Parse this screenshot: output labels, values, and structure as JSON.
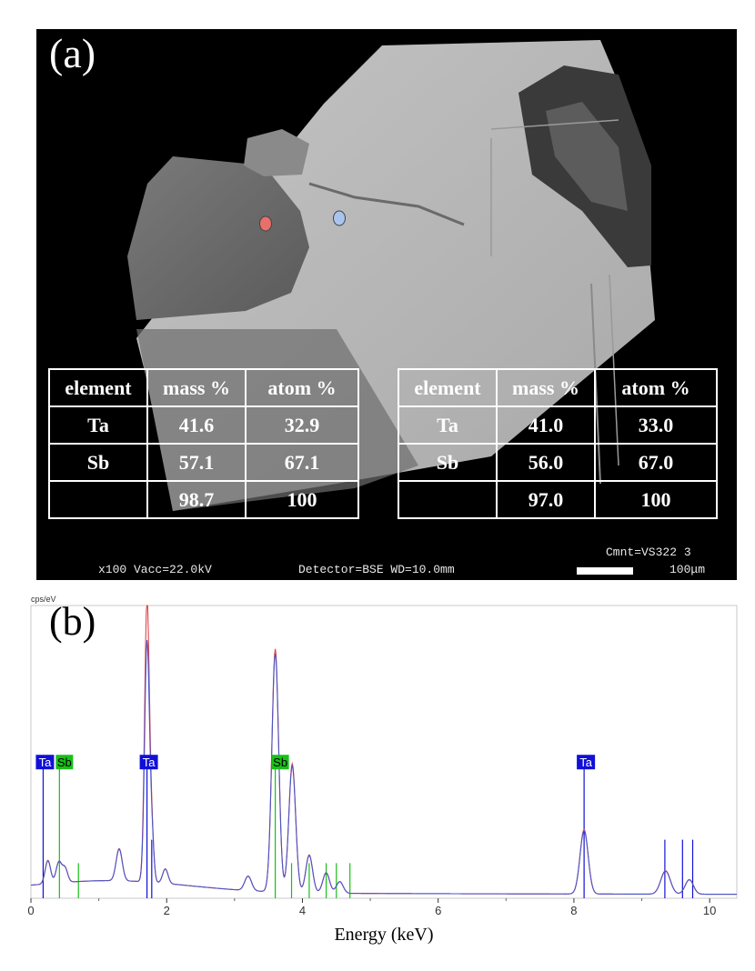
{
  "panel_a": {
    "label": "(a)",
    "markers": [
      {
        "name": "red-marker",
        "color": "#e8706a"
      },
      {
        "name": "blue-marker",
        "color": "#a9c4ee"
      }
    ],
    "tables": [
      {
        "header": [
          "element",
          "mass %",
          "atom %"
        ],
        "rows": [
          [
            "Ta",
            "41.6",
            "32.9"
          ],
          [
            "Sb",
            "57.1",
            "67.1"
          ],
          [
            "",
            "98.7",
            "100"
          ]
        ]
      },
      {
        "header": [
          "element",
          "mass %",
          "atom %"
        ],
        "rows": [
          [
            "Ta",
            "41.0",
            "33.0"
          ],
          [
            "Sb",
            "56.0",
            "67.0"
          ],
          [
            "",
            "97.0",
            "100"
          ]
        ]
      }
    ],
    "info": {
      "magnification": "x100 Vacc=22.0kV",
      "detector": "Detector=BSE WD=10.0mm",
      "comment": "Cmnt=VS322 3",
      "scale": "100μm"
    }
  },
  "chart_data": {
    "type": "line",
    "panel_label": "(b)",
    "xlabel": "Energy (keV)",
    "ylabel": "cps/eV",
    "xlim": [
      0,
      10.4
    ],
    "ylim": [
      0,
      1
    ],
    "xticks": [
      0,
      2,
      4,
      6,
      8,
      10
    ],
    "grid": false,
    "colors": {
      "red_series": "#e0444a",
      "blue_series": "#4a55c8",
      "teal_series": "#2aa6a0",
      "Ta_marker": "#1010d8",
      "Sb_marker": "#18c018"
    },
    "element_labels": [
      {
        "element": "Ta",
        "energy": 0.18
      },
      {
        "element": "Sb",
        "energy": 0.42
      },
      {
        "element": "Ta",
        "energy": 1.71
      },
      {
        "element": "Sb",
        "energy": 3.6
      },
      {
        "element": "Ta",
        "energy": 8.15
      }
    ],
    "marker_lines": {
      "Ta": [
        0.18,
        1.71,
        1.78,
        8.15,
        9.34,
        9.6,
        9.75
      ],
      "Sb": [
        0.42,
        0.7,
        3.6,
        3.84,
        4.1,
        4.35,
        4.5,
        4.7
      ]
    },
    "peaks": [
      {
        "energy": 0.25,
        "height": 0.08,
        "width": 0.04
      },
      {
        "energy": 0.41,
        "height": 0.07,
        "width": 0.04
      },
      {
        "energy": 0.5,
        "height": 0.05,
        "width": 0.04
      },
      {
        "energy": 1.3,
        "height": 0.11,
        "width": 0.045
      },
      {
        "energy": 1.71,
        "height": 0.96,
        "width": 0.035
      },
      {
        "energy": 1.78,
        "height": 0.16,
        "width": 0.03
      },
      {
        "energy": 1.98,
        "height": 0.05,
        "width": 0.04
      },
      {
        "energy": 3.2,
        "height": 0.05,
        "width": 0.05
      },
      {
        "energy": 3.6,
        "height": 0.83,
        "width": 0.05
      },
      {
        "energy": 3.85,
        "height": 0.44,
        "width": 0.05
      },
      {
        "energy": 4.1,
        "height": 0.13,
        "width": 0.05
      },
      {
        "energy": 4.35,
        "height": 0.07,
        "width": 0.05
      },
      {
        "energy": 4.55,
        "height": 0.04,
        "width": 0.05
      },
      {
        "energy": 8.15,
        "height": 0.22,
        "width": 0.06
      },
      {
        "energy": 9.35,
        "height": 0.08,
        "width": 0.07
      },
      {
        "energy": 9.7,
        "height": 0.05,
        "width": 0.06
      }
    ],
    "series": [
      {
        "name": "",
        "color": "#e0444a",
        "scale": {
          "1.71": 1.0,
          "default": 1.0
        }
      },
      {
        "name": "",
        "color": "#4a55c8",
        "scale": {
          "1.71": 0.85,
          "default": 0.98
        }
      }
    ]
  }
}
